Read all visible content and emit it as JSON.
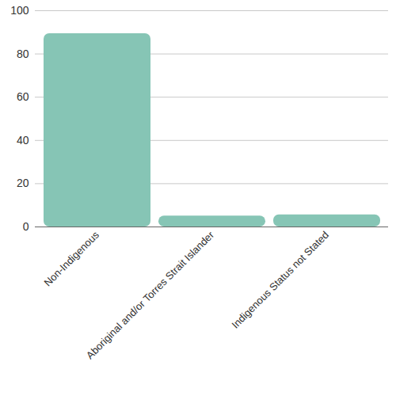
{
  "chart_data": {
    "type": "bar",
    "categories": [
      "Non-Indigenous",
      "Aboriginal and/or Torres Strait Islander",
      "Indigenous Status not Stated"
    ],
    "values": [
      89.4,
      5.0,
      5.6
    ],
    "color": "#86c5b5",
    "ylim": [
      0,
      100
    ],
    "yticks": [
      0,
      20,
      40,
      60,
      80,
      100
    ],
    "grid": true
  }
}
